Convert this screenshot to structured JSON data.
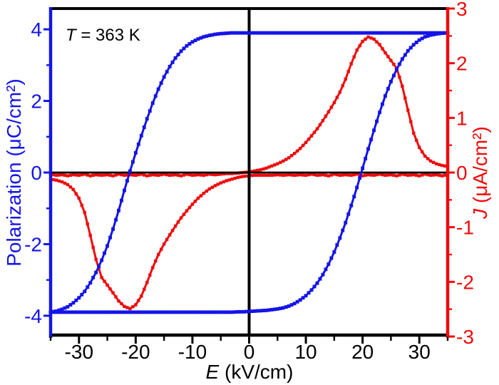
{
  "style": {
    "background": "#ffffff",
    "blue": "#1414e8",
    "red": "#ee0c0c",
    "black": "#000000"
  },
  "chart_data": {
    "type": "line",
    "title": "",
    "annotation": "T = 363 K",
    "annotation_symbol": "T",
    "annotation_rest": " = 363 K",
    "xlabel": "E (kV/cm)",
    "xlabel_symbol": "E",
    "xlabel_rest": " (kV/cm)",
    "ylabel_left": "Polarization (μC/cm²)",
    "ylabel_right": "J (μA/cm²)",
    "ylabel_right_symbol": "J",
    "ylabel_right_rest": " (μA/cm²)",
    "xlim": [
      -35,
      35
    ],
    "ylim_left": [
      -4.58,
      4.58
    ],
    "ylim_right": [
      -3,
      3
    ],
    "x_major_ticks": [
      -30,
      -20,
      -10,
      0,
      10,
      20,
      30
    ],
    "x_minor_ticks": [
      -35,
      -25,
      -15,
      -5,
      5,
      15,
      25,
      35
    ],
    "y_left_major_ticks": [
      -4,
      -2,
      0,
      2,
      4
    ],
    "y_left_minor_ticks": [
      -3,
      -1,
      1,
      3
    ],
    "y_right_major_ticks": [
      -3,
      -2,
      -1,
      0,
      1,
      2,
      3
    ],
    "y_right_minor_ticks": [
      -2.5,
      -1.5,
      -0.5,
      0.5,
      1.5,
      2.5
    ],
    "zero_lines": true,
    "legend_position": "none",
    "grid": false,
    "x": [
      -35,
      -34,
      -33,
      -32,
      -31,
      -30,
      -29,
      -28,
      -27,
      -26,
      -25,
      -24,
      -23,
      -22,
      -21,
      -20,
      -19,
      -18,
      -17,
      -16,
      -15,
      -14,
      -13,
      -12,
      -11,
      -10,
      -9,
      -8,
      -7,
      -6,
      -5,
      -4,
      -3,
      -2,
      -1,
      0,
      1,
      2,
      3,
      4,
      5,
      6,
      7,
      8,
      9,
      10,
      11,
      12,
      13,
      14,
      15,
      16,
      17,
      18,
      19,
      20,
      21,
      22,
      23,
      24,
      25,
      26,
      27,
      28,
      29,
      30,
      31,
      32,
      33,
      34,
      35
    ],
    "series": [
      {
        "name": "current-density-up-sweep",
        "axis": "right",
        "color": "#ee0c0c",
        "units": "μA/cm²",
        "values": [
          -0.03,
          -0.05,
          -0.04,
          -0.06,
          -0.04,
          -0.05,
          -0.03,
          -0.06,
          -0.04,
          -0.05,
          -0.04,
          -0.06,
          -0.03,
          -0.05,
          -0.04,
          -0.05,
          -0.03,
          -0.06,
          -0.04,
          -0.05,
          -0.03,
          -0.05,
          -0.04,
          -0.06,
          -0.03,
          -0.05,
          -0.04,
          -0.05,
          -0.03,
          -0.04,
          -0.03,
          -0.02,
          -0.02,
          -0.01,
          0,
          0.01,
          0.03,
          0.05,
          0.08,
          0.12,
          0.16,
          0.21,
          0.27,
          0.35,
          0.44,
          0.55,
          0.67,
          0.8,
          0.95,
          1.11,
          1.28,
          1.47,
          1.71,
          1.99,
          2.24,
          2.4,
          2.48,
          2.44,
          2.34,
          2.19,
          2.05,
          1.91,
          1.58,
          1.14,
          0.72,
          0.46,
          0.3,
          0.21,
          0.16,
          0.13,
          0.11
        ]
      },
      {
        "name": "current-density-down-sweep",
        "axis": "right",
        "color": "#ee0c0c",
        "units": "μA/cm²",
        "values": [
          -0.12,
          -0.14,
          -0.17,
          -0.22,
          -0.31,
          -0.47,
          -0.73,
          -1.15,
          -1.59,
          -1.92,
          -2.06,
          -2.2,
          -2.35,
          -2.45,
          -2.49,
          -2.42,
          -2.26,
          -2.01,
          -1.74,
          -1.5,
          -1.31,
          -1.14,
          -0.98,
          -0.83,
          -0.7,
          -0.58,
          -0.47,
          -0.38,
          -0.3,
          -0.24,
          -0.19,
          -0.15,
          -0.12,
          -0.09,
          -0.07,
          -0.06,
          -0.05,
          -0.05,
          -0.05,
          -0.05,
          -0.04,
          -0.05,
          -0.04,
          -0.05,
          -0.04,
          -0.05,
          -0.03,
          -0.05,
          -0.04,
          -0.06,
          -0.03,
          -0.05,
          -0.04,
          -0.05,
          -0.03,
          -0.06,
          -0.04,
          -0.05,
          -0.03,
          -0.05,
          -0.04,
          -0.06,
          -0.03,
          -0.05,
          -0.04,
          -0.06,
          -0.03,
          -0.05,
          -0.04,
          -0.06,
          -0.04
        ]
      },
      {
        "name": "polarization-ascending-branch",
        "axis": "left",
        "color": "#1414e8",
        "units": "μC/cm²",
        "values": [
          -3.9,
          -3.9,
          -3.9,
          -3.9,
          -3.9,
          -3.9,
          -3.9,
          -3.9,
          -3.9,
          -3.9,
          -3.9,
          -3.9,
          -3.9,
          -3.9,
          -3.9,
          -3.9,
          -3.9,
          -3.9,
          -3.9,
          -3.9,
          -3.9,
          -3.9,
          -3.9,
          -3.9,
          -3.9,
          -3.9,
          -3.9,
          -3.9,
          -3.9,
          -3.9,
          -3.9,
          -3.9,
          -3.9,
          -3.89,
          -3.89,
          -3.88,
          -3.87,
          -3.86,
          -3.85,
          -3.83,
          -3.81,
          -3.78,
          -3.73,
          -3.66,
          -3.56,
          -3.44,
          -3.28,
          -3.09,
          -2.85,
          -2.56,
          -2.22,
          -1.83,
          -1.4,
          -0.92,
          -0.42,
          0.12,
          0.66,
          1.18,
          1.68,
          2.14,
          2.54,
          2.88,
          3.17,
          3.4,
          3.57,
          3.7,
          3.79,
          3.84,
          3.87,
          3.89,
          3.9
        ]
      },
      {
        "name": "polarization-descending-branch",
        "axis": "left",
        "color": "#1414e8",
        "units": "μC/cm²",
        "values": [
          -3.9,
          -3.87,
          -3.82,
          -3.75,
          -3.64,
          -3.5,
          -3.32,
          -3.08,
          -2.79,
          -2.45,
          -2.05,
          -1.58,
          -1.06,
          -0.5,
          0.04,
          0.55,
          1.03,
          1.5,
          1.94,
          2.33,
          2.67,
          2.96,
          3.2,
          3.39,
          3.54,
          3.65,
          3.73,
          3.79,
          3.83,
          3.86,
          3.88,
          3.89,
          3.9,
          3.9,
          3.9,
          3.9,
          3.9,
          3.9,
          3.9,
          3.9,
          3.9,
          3.9,
          3.9,
          3.9,
          3.9,
          3.9,
          3.9,
          3.9,
          3.9,
          3.9,
          3.9,
          3.9,
          3.9,
          3.9,
          3.9,
          3.9,
          3.9,
          3.9,
          3.9,
          3.9,
          3.9,
          3.9,
          3.9,
          3.9,
          3.9,
          3.9,
          3.9,
          3.9,
          3.9,
          3.9,
          3.9
        ]
      }
    ]
  }
}
